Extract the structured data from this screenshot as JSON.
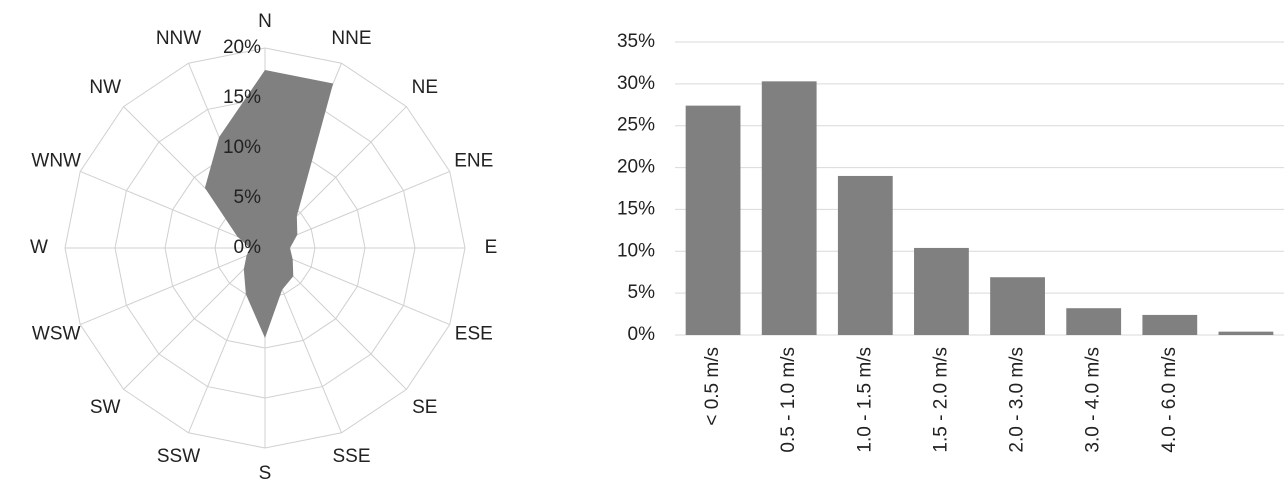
{
  "chart_data": [
    {
      "type": "radar",
      "categories": [
        "N",
        "NNE",
        "NE",
        "ENE",
        "E",
        "ESE",
        "SE",
        "SSE",
        "S",
        "SSW",
        "SW",
        "WSW",
        "W",
        "WNW",
        "NW",
        "NNW"
      ],
      "values": [
        17.8,
        17.8,
        4.5,
        3.5,
        2.5,
        3,
        4,
        4.5,
        9,
        5,
        3,
        2,
        1.5,
        3,
        8.5,
        12
      ],
      "color": "#808080",
      "rlim": [
        0,
        20
      ],
      "rticks": [
        {
          "value": 0,
          "label": "0%"
        },
        {
          "value": 5,
          "label": "5%"
        },
        {
          "value": 10,
          "label": "10%"
        },
        {
          "value": 15,
          "label": "15%"
        },
        {
          "value": 20,
          "label": "20%"
        }
      ]
    },
    {
      "type": "bar",
      "categories": [
        "< 0.5 m/s",
        "0.5 - 1.0 m/s",
        "1.0 - 1.5 m/s",
        "1.5 - 2.0 m/s",
        "2.0 - 3.0 m/s",
        "3.0 - 4.0 m/s",
        "4.0 - 6.0 m/s",
        null
      ],
      "values": [
        27.4,
        30.3,
        19,
        10.4,
        6.9,
        3.2,
        2.4,
        0.4
      ],
      "color": "#808080",
      "ylim": [
        0,
        35
      ],
      "yticks": [
        {
          "value": 0,
          "label": "0%"
        },
        {
          "value": 5,
          "label": "5%"
        },
        {
          "value": 10,
          "label": "10%"
        },
        {
          "value": 15,
          "label": "15%"
        },
        {
          "value": 20,
          "label": "20%"
        },
        {
          "value": 25,
          "label": "25%"
        },
        {
          "value": 30,
          "label": "30%"
        },
        {
          "value": 35,
          "label": "35%"
        }
      ],
      "grid": true
    }
  ]
}
